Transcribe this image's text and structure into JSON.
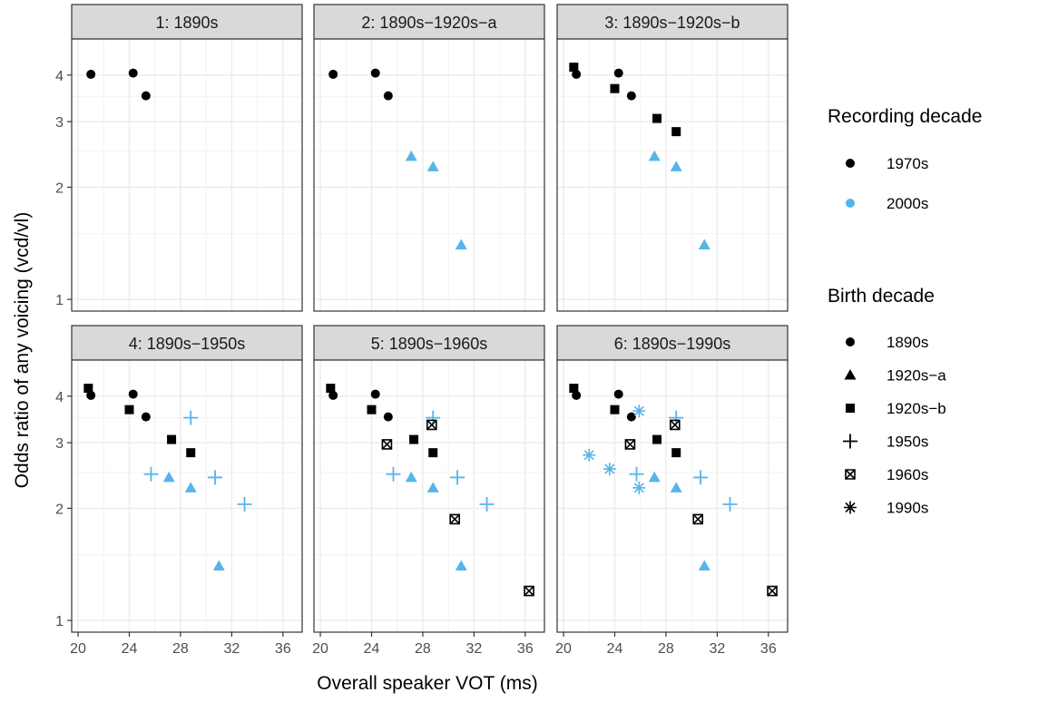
{
  "chart_data": {
    "type": "scatter",
    "xlabel": "Overall speaker VOT (ms)",
    "ylabel": "Odds ratio of any voicing (vcd/vl)",
    "y_scale": "log",
    "xlim": [
      19.5,
      37.5
    ],
    "ylim": [
      0.93,
      5.0
    ],
    "x_ticks": [
      20,
      24,
      28,
      32,
      36
    ],
    "x_tick_labels": [
      "20",
      "24",
      "28",
      "32",
      "36"
    ],
    "y_ticks": [
      1,
      2,
      3,
      4
    ],
    "y_tick_labels": [
      "1",
      "2",
      "3",
      "4"
    ],
    "grid": true,
    "legend_position": "right",
    "legends": [
      {
        "title": "Recording decade",
        "entries": [
          {
            "label": "1970s",
            "color": "#000000",
            "shape": "circle"
          },
          {
            "label": "2000s",
            "color": "#56B4E9",
            "shape": "circle"
          }
        ]
      },
      {
        "title": "Birth decade",
        "entries": [
          {
            "label": "1890s",
            "shape": "circle"
          },
          {
            "label": "1920s−a",
            "shape": "triangle"
          },
          {
            "label": "1920s−b",
            "shape": "square"
          },
          {
            "label": "1950s",
            "shape": "plus"
          },
          {
            "label": "1960s",
            "shape": "boxcross"
          },
          {
            "label": "1990s",
            "shape": "asterisk"
          }
        ]
      }
    ],
    "panels": [
      {
        "title": "1: 1890s",
        "groups": [
          "1890s"
        ]
      },
      {
        "title": "2: 1890s−1920s−a",
        "groups": [
          "1890s",
          "1920s−a"
        ]
      },
      {
        "title": "3: 1890s−1920s−b",
        "groups": [
          "1890s",
          "1920s−a",
          "1920s−b"
        ]
      },
      {
        "title": "4: 1890s−1950s",
        "groups": [
          "1890s",
          "1920s−a",
          "1920s−b",
          "1950s"
        ]
      },
      {
        "title": "5: 1890s−1960s",
        "groups": [
          "1890s",
          "1920s−a",
          "1920s−b",
          "1950s",
          "1960s"
        ]
      },
      {
        "title": "6: 1890s−1990s",
        "groups": [
          "1890s",
          "1920s−a",
          "1920s−b",
          "1950s",
          "1960s",
          "1990s"
        ]
      }
    ],
    "points": [
      {
        "birth": "1890s",
        "recording": "1970s",
        "x": 21.0,
        "y": 4.02
      },
      {
        "birth": "1890s",
        "recording": "1970s",
        "x": 24.3,
        "y": 4.05
      },
      {
        "birth": "1890s",
        "recording": "1970s",
        "x": 25.3,
        "y": 3.52
      },
      {
        "birth": "1920s−a",
        "recording": "2000s",
        "x": 27.1,
        "y": 2.42
      },
      {
        "birth": "1920s−a",
        "recording": "2000s",
        "x": 28.8,
        "y": 2.27
      },
      {
        "birth": "1920s−a",
        "recording": "2000s",
        "x": 31.0,
        "y": 1.4
      },
      {
        "birth": "1920s−b",
        "recording": "1970s",
        "x": 20.8,
        "y": 4.2
      },
      {
        "birth": "1920s−b",
        "recording": "1970s",
        "x": 24.0,
        "y": 3.68
      },
      {
        "birth": "1920s−b",
        "recording": "1970s",
        "x": 27.3,
        "y": 3.06
      },
      {
        "birth": "1920s−b",
        "recording": "1970s",
        "x": 28.8,
        "y": 2.82
      },
      {
        "birth": "1950s",
        "recording": "2000s",
        "x": 25.7,
        "y": 2.47
      },
      {
        "birth": "1950s",
        "recording": "2000s",
        "x": 28.8,
        "y": 3.5
      },
      {
        "birth": "1950s",
        "recording": "2000s",
        "x": 30.7,
        "y": 2.42
      },
      {
        "birth": "1950s",
        "recording": "2000s",
        "x": 33.0,
        "y": 2.05
      },
      {
        "birth": "1960s",
        "recording": "1970s",
        "x": 25.2,
        "y": 2.97
      },
      {
        "birth": "1960s",
        "recording": "1970s",
        "x": 28.7,
        "y": 3.35
      },
      {
        "birth": "1960s",
        "recording": "1970s",
        "x": 30.5,
        "y": 1.87
      },
      {
        "birth": "1960s",
        "recording": "1970s",
        "x": 36.3,
        "y": 1.2
      },
      {
        "birth": "1990s",
        "recording": "2000s",
        "x": 22.0,
        "y": 2.78
      },
      {
        "birth": "1990s",
        "recording": "2000s",
        "x": 23.6,
        "y": 2.55
      },
      {
        "birth": "1990s",
        "recording": "2000s",
        "x": 25.9,
        "y": 3.65
      },
      {
        "birth": "1990s",
        "recording": "2000s",
        "x": 25.9,
        "y": 2.27
      }
    ]
  }
}
